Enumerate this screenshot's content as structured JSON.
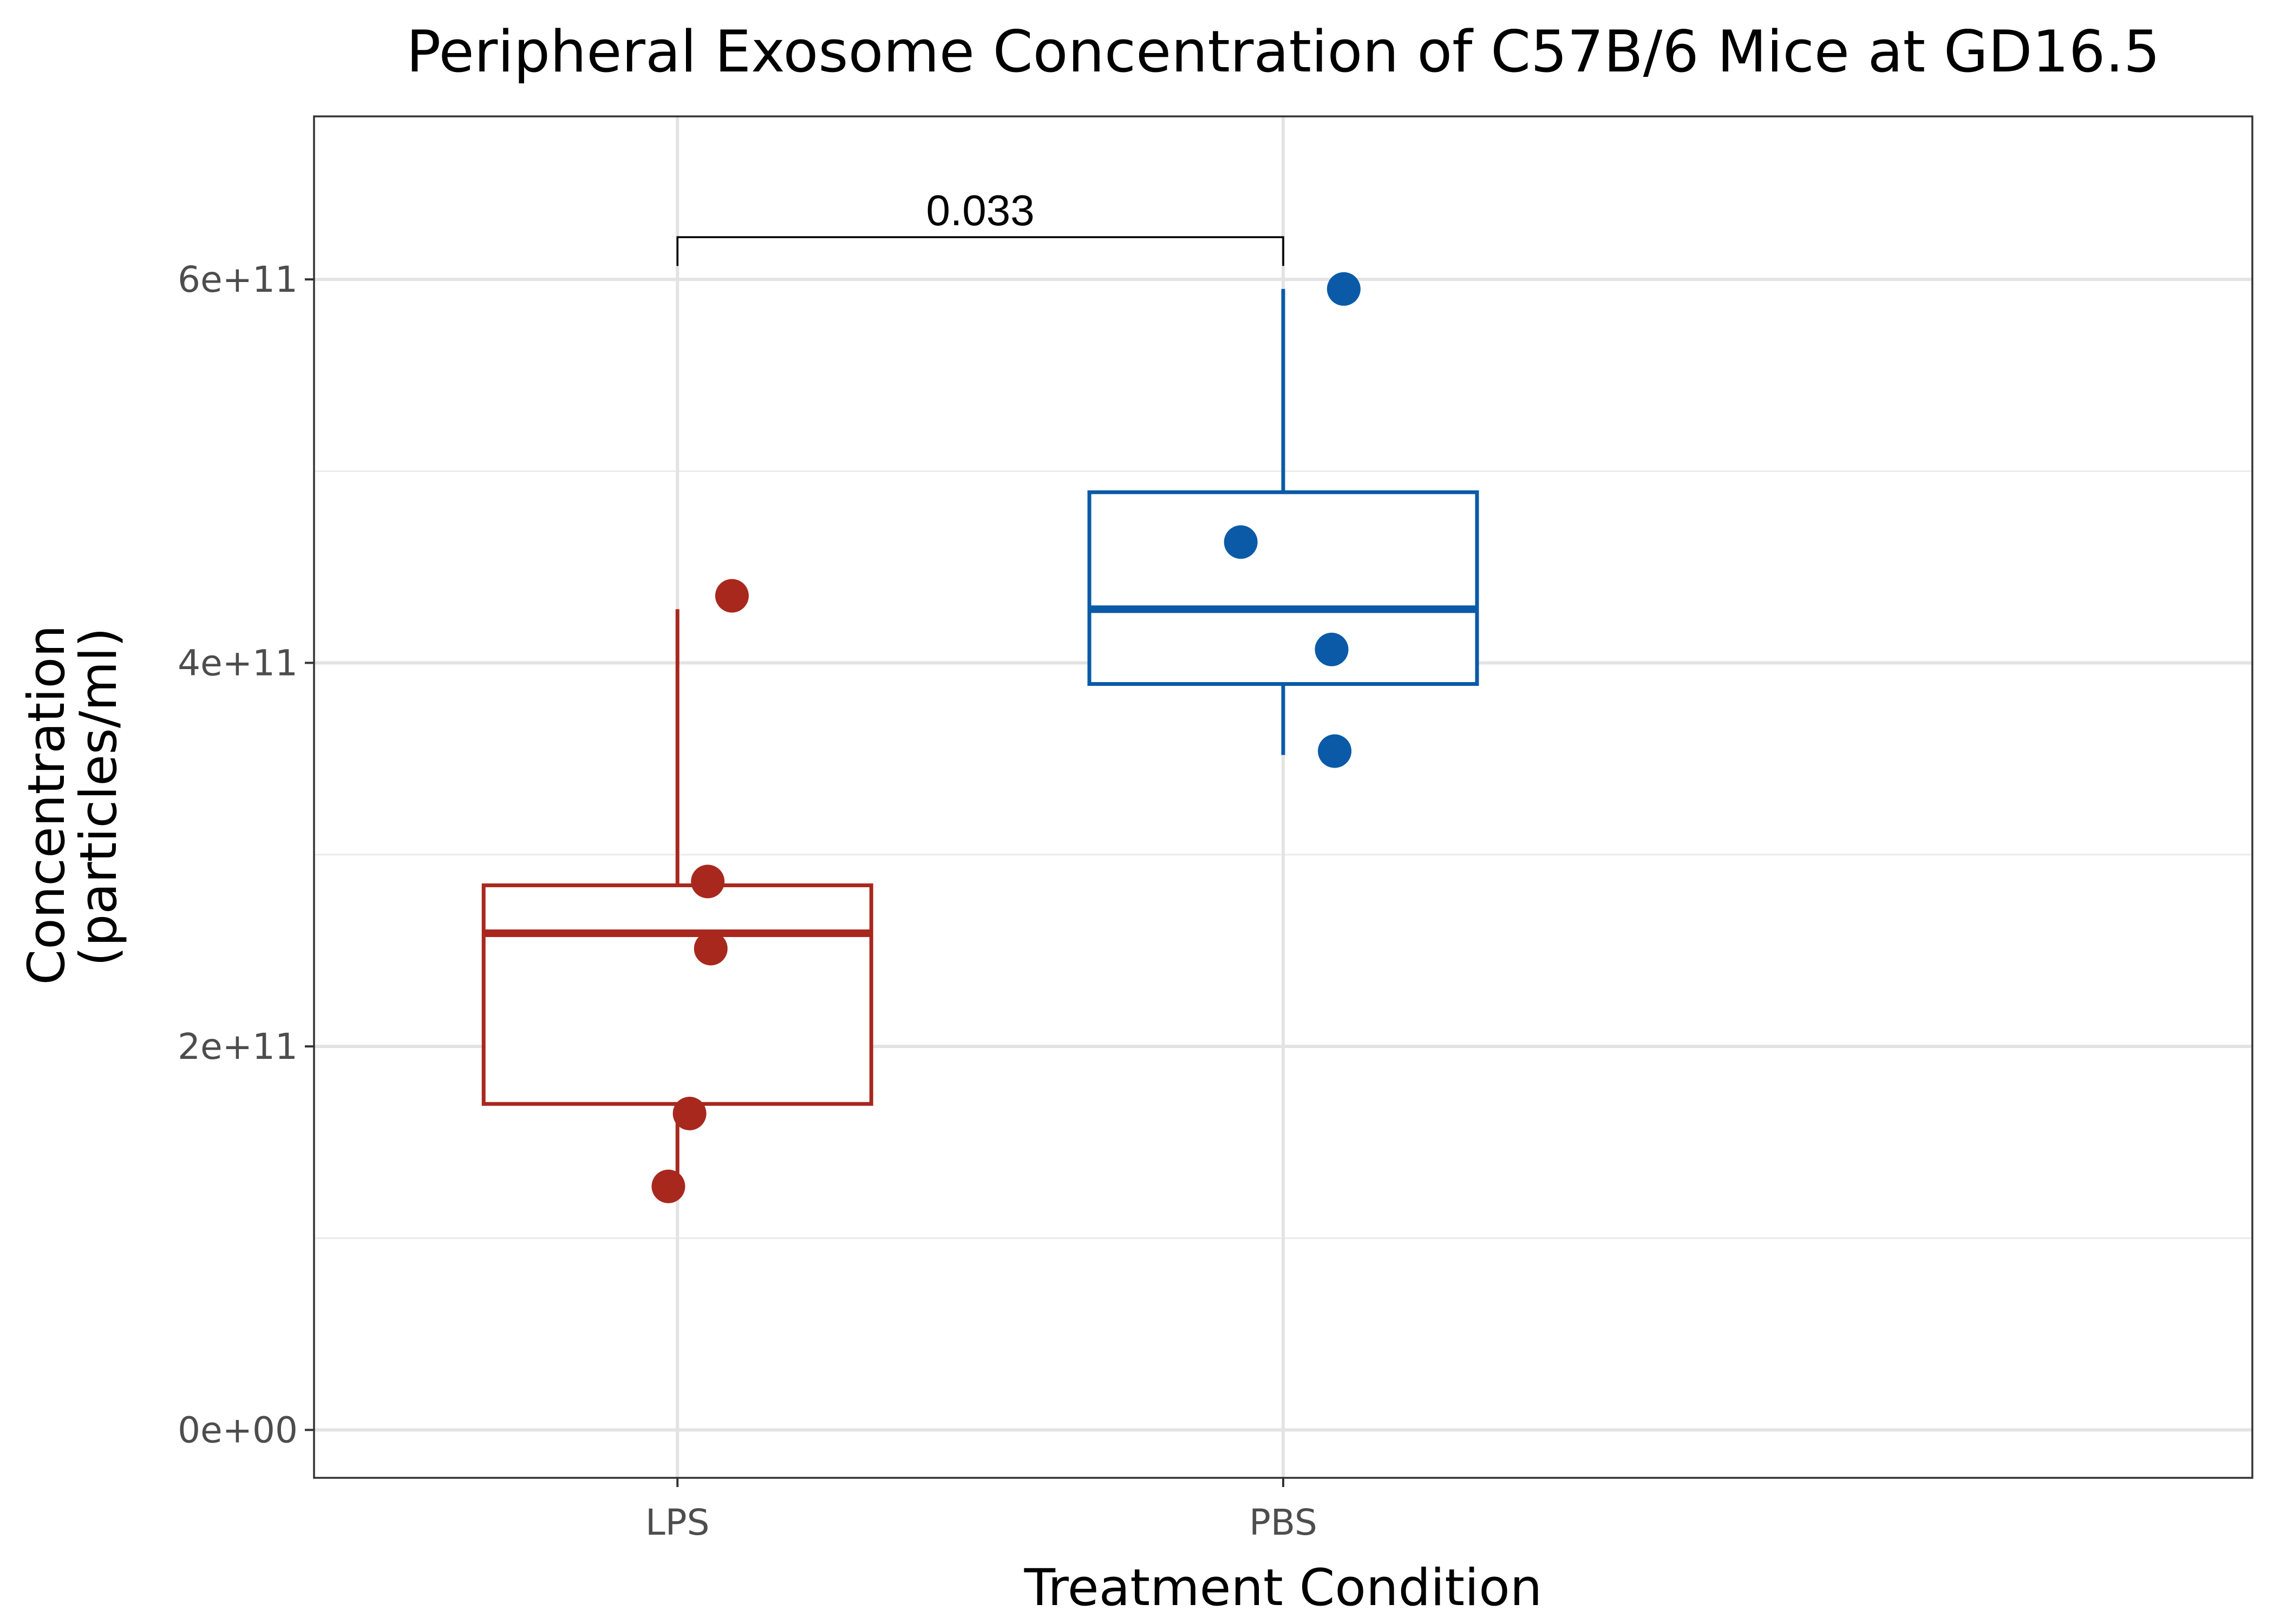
{
  "chart_data": {
    "type": "box",
    "title": "Peripheral Exosome Concentration of C57B/6 Mice at GD16.5",
    "xlabel": "Treatment Condition",
    "ylabel": [
      "Concentration",
      "(particles/ml)"
    ],
    "ylim": [
      -25000000000,
      685000000000
    ],
    "y_ticks": [
      0,
      200000000000,
      400000000000,
      600000000000
    ],
    "y_tick_labels": [
      "0e+00",
      "2e+11",
      "4e+11",
      "6e+11"
    ],
    "y_minor_ticks": [
      100000000000,
      300000000000,
      500000000000
    ],
    "grid": true,
    "categories": [
      "LPS",
      "PBS"
    ],
    "series": [
      {
        "color": "#A8281E",
        "box": {
          "q1": 170000000000,
          "median": 259000000000,
          "q3": 284000000000,
          "whisker_low": 127000000000,
          "whisker_high": 428000000000
        },
        "points": [
          {
            "jitter": 0.09,
            "y": 435000000000
          },
          {
            "jitter": 0.05,
            "y": 286000000000
          },
          {
            "jitter": 0.055,
            "y": 251000000000
          },
          {
            "jitter": 0.02,
            "y": 165000000000
          },
          {
            "jitter": -0.015,
            "y": 127000000000
          }
        ]
      },
      {
        "color": "#0A5AA8",
        "box": {
          "q1": 389000000000,
          "median": 428000000000,
          "q3": 489000000000,
          "whisker_low": 352000000000,
          "whisker_high": 595000000000
        },
        "points": [
          {
            "jitter": 0.1,
            "y": 595000000000
          },
          {
            "jitter": -0.07,
            "y": 463000000000
          },
          {
            "jitter": 0.08,
            "y": 407000000000
          },
          {
            "jitter": 0.085,
            "y": 354000000000
          }
        ]
      }
    ],
    "annotations": [
      {
        "type": "significance-bracket",
        "from": "LPS",
        "to": "PBS",
        "label": "0.033",
        "y": 622000000000,
        "tick_bottom": 607000000000
      }
    ]
  }
}
